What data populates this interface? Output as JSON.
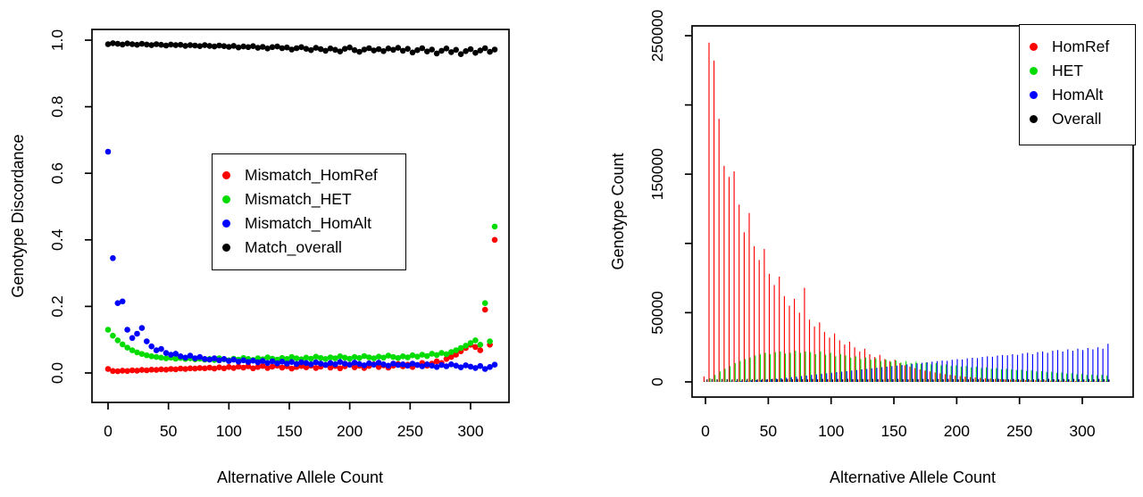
{
  "figure": {
    "background": "#ffffff",
    "axis_color": "#000000",
    "left_xlabel": "Alternative Allele Count",
    "left_ylabel": "Genotype Discordance",
    "right_xlabel": "Alternative Allele Count",
    "right_ylabel": "Genotype Count"
  },
  "chart_data": [
    {
      "type": "scatter",
      "title": "",
      "xlabel": "Alternative Allele Count",
      "ylabel": "Genotype Discordance",
      "x_axis": {
        "range": [
          -13.3,
          331.8
        ],
        "ticks": [
          0,
          50,
          100,
          150,
          200,
          250,
          300
        ],
        "tick_labels": [
          "0",
          "50",
          "100",
          "150",
          "200",
          "250",
          "300"
        ]
      },
      "y_axis": {
        "range": [
          -0.0885,
          1.0322
        ],
        "ticks": [
          0,
          0.2,
          0.4,
          0.6,
          0.8,
          1
        ],
        "tick_labels": [
          "0.0",
          "0.2",
          "0.4",
          "0.6",
          "0.8",
          "1.0"
        ]
      },
      "grid": false,
      "legend": {
        "position": "center-left",
        "entries": [
          {
            "label": "Mismatch_HomRef",
            "color": "#ff0000"
          },
          {
            "label": "Mismatch_HET",
            "color": "#00db00"
          },
          {
            "label": "Mismatch_HomAlt",
            "color": "#0000ff"
          },
          {
            "label": "Match_overall",
            "color": "#000000"
          }
        ]
      },
      "x": [
        0,
        4,
        8,
        12,
        16,
        20,
        24,
        28,
        32,
        36,
        40,
        44,
        48,
        52,
        56,
        60,
        64,
        68,
        72,
        76,
        80,
        84,
        88,
        92,
        96,
        100,
        104,
        108,
        112,
        116,
        120,
        124,
        128,
        132,
        136,
        140,
        144,
        148,
        152,
        156,
        160,
        164,
        168,
        172,
        176,
        180,
        184,
        188,
        192,
        196,
        200,
        204,
        208,
        212,
        216,
        220,
        224,
        228,
        232,
        236,
        240,
        244,
        248,
        252,
        256,
        260,
        264,
        268,
        272,
        276,
        280,
        284,
        288,
        292,
        296,
        300,
        304,
        308,
        312,
        316,
        320
      ],
      "series": [
        {
          "name": "Mismatch_HomRef",
          "color": "#ff0000",
          "values": [
            0.012,
            0.006,
            0.005,
            0.007,
            0.006,
            0.008,
            0.007,
            0.009,
            0.008,
            0.01,
            0.009,
            0.011,
            0.01,
            0.012,
            0.011,
            0.013,
            0.012,
            0.014,
            0.013,
            0.015,
            0.014,
            0.016,
            0.013,
            0.017,
            0.014,
            0.018,
            0.015,
            0.019,
            0.016,
            0.02,
            0.014,
            0.018,
            0.021,
            0.015,
            0.019,
            0.022,
            0.016,
            0.02,
            0.013,
            0.018,
            0.021,
            0.017,
            0.022,
            0.015,
            0.019,
            0.024,
            0.016,
            0.021,
            0.014,
            0.02,
            0.025,
            0.017,
            0.022,
            0.015,
            0.021,
            0.026,
            0.018,
            0.023,
            0.016,
            0.022,
            0.027,
            0.02,
            0.025,
            0.018,
            0.024,
            0.03,
            0.022,
            0.028,
            0.035,
            0.03,
            0.042,
            0.048,
            0.055,
            0.065,
            0.075,
            0.085,
            0.078,
            0.068,
            0.19,
            0.085,
            0.4
          ]
        },
        {
          "name": "Mismatch_HET",
          "color": "#00db00",
          "values": [
            0.13,
            0.112,
            0.098,
            0.086,
            0.076,
            0.068,
            0.062,
            0.057,
            0.053,
            0.05,
            0.048,
            0.046,
            0.044,
            0.046,
            0.043,
            0.045,
            0.042,
            0.044,
            0.041,
            0.043,
            0.04,
            0.042,
            0.039,
            0.044,
            0.041,
            0.038,
            0.043,
            0.04,
            0.045,
            0.042,
            0.039,
            0.044,
            0.041,
            0.047,
            0.043,
            0.04,
            0.045,
            0.042,
            0.048,
            0.044,
            0.041,
            0.046,
            0.043,
            0.049,
            0.045,
            0.042,
            0.047,
            0.044,
            0.05,
            0.046,
            0.043,
            0.048,
            0.045,
            0.051,
            0.047,
            0.044,
            0.049,
            0.046,
            0.052,
            0.048,
            0.045,
            0.05,
            0.047,
            0.053,
            0.049,
            0.055,
            0.051,
            0.058,
            0.054,
            0.06,
            0.056,
            0.063,
            0.068,
            0.075,
            0.082,
            0.09,
            0.098,
            0.085,
            0.21,
            0.095,
            0.44
          ]
        },
        {
          "name": "Mismatch_HomAlt",
          "color": "#0000ff",
          "values": [
            0.665,
            0.345,
            0.21,
            0.215,
            0.13,
            0.105,
            0.118,
            0.135,
            0.095,
            0.08,
            0.068,
            0.072,
            0.06,
            0.055,
            0.058,
            0.05,
            0.046,
            0.052,
            0.044,
            0.048,
            0.042,
            0.04,
            0.044,
            0.038,
            0.042,
            0.036,
            0.04,
            0.034,
            0.038,
            0.033,
            0.037,
            0.032,
            0.036,
            0.03,
            0.035,
            0.029,
            0.034,
            0.028,
            0.033,
            0.027,
            0.032,
            0.03,
            0.026,
            0.032,
            0.028,
            0.024,
            0.03,
            0.026,
            0.033,
            0.028,
            0.025,
            0.031,
            0.027,
            0.023,
            0.029,
            0.025,
            0.031,
            0.026,
            0.022,
            0.028,
            0.024,
            0.026,
            0.022,
            0.028,
            0.024,
            0.02,
            0.026,
            0.022,
            0.018,
            0.024,
            0.02,
            0.026,
            0.022,
            0.017,
            0.023,
            0.019,
            0.015,
            0.021,
            0.012,
            0.018,
            0.025
          ]
        },
        {
          "name": "Match_overall",
          "color": "#000000",
          "values": [
            0.988,
            0.991,
            0.989,
            0.987,
            0.99,
            0.988,
            0.986,
            0.989,
            0.987,
            0.985,
            0.988,
            0.986,
            0.984,
            0.987,
            0.985,
            0.986,
            0.983,
            0.985,
            0.984,
            0.982,
            0.985,
            0.983,
            0.981,
            0.984,
            0.982,
            0.98,
            0.983,
            0.978,
            0.981,
            0.979,
            0.982,
            0.977,
            0.98,
            0.975,
            0.979,
            0.981,
            0.976,
            0.978,
            0.972,
            0.976,
            0.979,
            0.974,
            0.97,
            0.977,
            0.973,
            0.968,
            0.975,
            0.971,
            0.966,
            0.974,
            0.978,
            0.97,
            0.965,
            0.972,
            0.976,
            0.969,
            0.973,
            0.967,
            0.975,
            0.971,
            0.977,
            0.968,
            0.974,
            0.963,
            0.97,
            0.976,
            0.966,
            0.972,
            0.96,
            0.968,
            0.975,
            0.964,
            0.971,
            0.958,
            0.967,
            0.973,
            0.962,
            0.969,
            0.976,
            0.965,
            0.972
          ]
        }
      ]
    },
    {
      "type": "bar",
      "title": "",
      "xlabel": "Alternative Allele Count",
      "ylabel": "Genotype Count",
      "x_axis": {
        "range": [
          -10.7,
          340.5
        ],
        "ticks": [
          0,
          50,
          100,
          150,
          200,
          250,
          300
        ],
        "tick_labels": [
          "0",
          "50",
          "100",
          "150",
          "200",
          "250",
          "300"
        ]
      },
      "y_axis": {
        "range": [
          -10953,
          257088
        ],
        "ticks": [
          0,
          50000,
          100000,
          150000,
          200000,
          250000
        ],
        "tick_labels": [
          "0",
          "50000",
          "",
          "150000",
          "",
          "250000"
        ]
      },
      "grid": false,
      "legend": {
        "position": "top-right",
        "entries": [
          {
            "label": "HomRef",
            "color": "#ff0000"
          },
          {
            "label": "HET",
            "color": "#00db00"
          },
          {
            "label": "HomAlt",
            "color": "#0000ff"
          },
          {
            "label": "Overall",
            "color": "#000000"
          }
        ]
      },
      "x": [
        0,
        4,
        8,
        12,
        16,
        20,
        24,
        28,
        32,
        36,
        40,
        44,
        48,
        52,
        56,
        60,
        64,
        68,
        72,
        76,
        80,
        84,
        88,
        92,
        96,
        100,
        104,
        108,
        112,
        116,
        120,
        124,
        128,
        132,
        136,
        140,
        144,
        148,
        152,
        156,
        160,
        164,
        168,
        172,
        176,
        180,
        184,
        188,
        192,
        196,
        200,
        204,
        208,
        212,
        216,
        220,
        224,
        228,
        232,
        236,
        240,
        244,
        248,
        252,
        256,
        260,
        264,
        268,
        272,
        276,
        280,
        284,
        288,
        292,
        296,
        300,
        304,
        308,
        312,
        316,
        320
      ],
      "series": [
        {
          "name": "HomRef",
          "color": "#ff0000",
          "values": [
            4000,
            245000,
            232000,
            190000,
            156000,
            148000,
            152000,
            128000,
            108000,
            122000,
            98000,
            88000,
            96000,
            78000,
            70000,
            76000,
            62000,
            55000,
            60000,
            50000,
            68000,
            45000,
            40000,
            43000,
            36000,
            32000,
            35000,
            30000,
            27000,
            29000,
            25000,
            22000,
            24000,
            20000,
            18000,
            19500,
            16500,
            15000,
            16000,
            13500,
            12000,
            11000,
            10000,
            9000,
            8200,
            7500,
            6800,
            6200,
            5600,
            5100,
            4600,
            4200,
            3800,
            3500,
            3200,
            2900,
            2600,
            2400,
            2200,
            2000,
            1800,
            1700,
            1500,
            1400,
            1300,
            1200,
            1100,
            1000,
            950,
            900,
            850,
            800,
            750,
            700,
            650,
            600,
            580,
            550,
            520,
            500,
            480
          ]
        },
        {
          "name": "HET",
          "color": "#00db00",
          "values": [
            300,
            2500,
            5000,
            7500,
            9500,
            11500,
            13500,
            15000,
            16500,
            17500,
            19000,
            20000,
            21000,
            20000,
            21500,
            22000,
            20500,
            21000,
            22500,
            21000,
            22000,
            21500,
            20000,
            22000,
            19500,
            21000,
            18500,
            20000,
            19000,
            17500,
            18500,
            16500,
            17500,
            16000,
            17000,
            15000,
            16000,
            14500,
            15500,
            14000,
            15000,
            13500,
            14500,
            13000,
            14000,
            12500,
            13500,
            12000,
            12500,
            11500,
            12000,
            11000,
            11500,
            10500,
            11000,
            10000,
            10500,
            9500,
            10000,
            9000,
            9500,
            9000,
            8500,
            8800,
            8000,
            8300,
            7500,
            7800,
            7000,
            7300,
            6500,
            6800,
            6000,
            6300,
            5500,
            5800,
            5000,
            5300,
            4800,
            5000,
            4500
          ]
        },
        {
          "name": "HomAlt",
          "color": "#0000ff",
          "values": [
            0,
            50,
            100,
            150,
            250,
            350,
            500,
            650,
            800,
            1000,
            1200,
            1400,
            1700,
            2000,
            2300,
            2600,
            3000,
            3400,
            3800,
            4200,
            4600,
            5000,
            5400,
            5800,
            6200,
            6600,
            7000,
            7400,
            7800,
            8200,
            8600,
            9000,
            9400,
            9800,
            10200,
            10600,
            11000,
            11400,
            11800,
            12200,
            12600,
            13000,
            13400,
            13800,
            14200,
            14600,
            15000,
            15400,
            15200,
            16000,
            16400,
            16200,
            17000,
            17400,
            17200,
            18000,
            18400,
            18200,
            19000,
            19400,
            19200,
            20000,
            19500,
            20500,
            21000,
            20000,
            21500,
            22000,
            21000,
            22500,
            23000,
            22000,
            23500,
            22500,
            24000,
            23000,
            24500,
            23500,
            25000,
            24000,
            27500
          ]
        },
        {
          "name": "Overall",
          "color": "#000000",
          "values": [
            1800,
            2100,
            1900,
            2200,
            2000,
            1800,
            2100,
            1900,
            2200,
            2000,
            1800,
            2100,
            1900,
            2200,
            2000,
            1800,
            2100,
            1900,
            2200,
            2000,
            1800,
            2100,
            1900,
            2200,
            2000,
            1800,
            2100,
            1900,
            2200,
            2000,
            1800,
            2100,
            1900,
            2200,
            2000,
            1800,
            2100,
            1900,
            2200,
            2000,
            1800,
            2100,
            1900,
            2200,
            2000,
            1800,
            2100,
            1900,
            2200,
            2000,
            1800,
            2100,
            1900,
            2200,
            2000,
            1800,
            2100,
            1900,
            2200,
            2000,
            1800,
            2100,
            1900,
            2200,
            2000,
            1800,
            2100,
            1900,
            2200,
            2000,
            1800,
            2100,
            1900,
            2200,
            2000,
            1800,
            2100,
            1900,
            2200,
            2000,
            1800
          ]
        }
      ]
    }
  ]
}
